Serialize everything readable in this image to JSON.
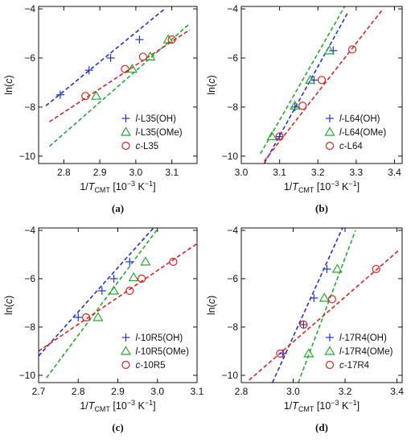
{
  "figure": {
    "panel_labels": [
      "(a)",
      "(b)",
      "(c)",
      "(d)"
    ]
  },
  "chart_data": [
    {
      "type": "scatter",
      "panel": "(a)",
      "xlabel": "1/T_CMT [10^-3 K^-1]",
      "ylabel": "ln(c)",
      "xlim": [
        2.73,
        3.17
      ],
      "ylim": [
        -10.3,
        -3.9
      ],
      "xticks": [
        2.8,
        2.9,
        3.0,
        3.1
      ],
      "yticks": [
        -10,
        -8,
        -6,
        -4
      ],
      "xtick_labels": [
        "2.8",
        "2.9",
        "3.0",
        "3.1"
      ],
      "ytick_labels": [
        "−10",
        "−8",
        "−6",
        "−4"
      ],
      "legend": "bottom-right",
      "grid": false,
      "series": [
        {
          "name": "l-L35(OH)",
          "prefix": "l",
          "suffix": "-L35(OH)",
          "marker": "plus",
          "color": "#2233cc",
          "points": [
            [
              2.79,
              -7.5
            ],
            [
              2.87,
              -6.5
            ],
            [
              2.93,
              -6.0
            ],
            [
              3.01,
              -5.25
            ]
          ],
          "fit": [
            [
              2.75,
              -7.95
            ],
            [
              3.08,
              -4.0
            ]
          ]
        },
        {
          "name": "l-L35(OMe)",
          "prefix": "l",
          "suffix": "-L35(OMe)",
          "marker": "triangle",
          "color": "#22aa33",
          "points": [
            [
              2.89,
              -7.55
            ],
            [
              2.99,
              -6.45
            ],
            [
              3.04,
              -5.95
            ],
            [
              3.09,
              -5.25
            ]
          ],
          "fit": [
            [
              2.76,
              -9.6
            ],
            [
              3.15,
              -4.6
            ]
          ]
        },
        {
          "name": "c-L35",
          "prefix": "c",
          "suffix": "-L35",
          "marker": "circle",
          "color": "#dd2222",
          "points": [
            [
              2.86,
              -7.55
            ],
            [
              2.97,
              -6.45
            ],
            [
              3.02,
              -5.95
            ],
            [
              3.1,
              -5.25
            ]
          ],
          "fit": [
            [
              2.76,
              -8.6
            ],
            [
              3.15,
              -4.85
            ]
          ]
        }
      ]
    },
    {
      "type": "scatter",
      "panel": "(b)",
      "xlabel": "1/T_CMT [10^-3 K^-1]",
      "ylabel": "ln(c)",
      "xlim": [
        3.0,
        3.42
      ],
      "ylim": [
        -10.3,
        -3.9
      ],
      "xticks": [
        3.0,
        3.1,
        3.2,
        3.3,
        3.4
      ],
      "yticks": [
        -10,
        -8,
        -6,
        -4
      ],
      "xtick_labels": [
        "3.0",
        "3.1",
        "3.2",
        "3.3",
        "3.4"
      ],
      "ytick_labels": [
        "−10",
        "−8",
        "−6",
        "−4"
      ],
      "legend": "bottom-right",
      "grid": false,
      "series": [
        {
          "name": "l-L64(OH)",
          "prefix": "l",
          "suffix": "-L64(OH)",
          "marker": "plus",
          "color": "#2233cc",
          "points": [
            [
              3.1,
              -9.2
            ],
            [
              3.14,
              -8.0
            ],
            [
              3.19,
              -6.9
            ],
            [
              3.24,
              -5.7
            ]
          ],
          "fit": [
            [
              3.06,
              -10.3
            ],
            [
              3.28,
              -4.1
            ]
          ]
        },
        {
          "name": "l-L64(OMe)",
          "prefix": "l",
          "suffix": "-L64(OMe)",
          "marker": "triangle",
          "color": "#22aa33",
          "points": [
            [
              3.08,
              -9.2
            ],
            [
              3.14,
              -7.95
            ],
            [
              3.18,
              -6.9
            ],
            [
              3.23,
              -5.7
            ]
          ],
          "fit": [
            [
              3.05,
              -9.9
            ],
            [
              3.27,
              -3.9
            ]
          ]
        },
        {
          "name": "c-L64",
          "prefix": "c",
          "suffix": "-L64",
          "marker": "circle",
          "color": "#dd2222",
          "points": [
            [
              3.1,
              -9.2
            ],
            [
              3.16,
              -7.95
            ],
            [
              3.21,
              -6.9
            ],
            [
              3.29,
              -5.65
            ]
          ],
          "fit": [
            [
              3.06,
              -10.2
            ],
            [
              3.37,
              -4.0
            ]
          ]
        }
      ]
    },
    {
      "type": "scatter",
      "panel": "(c)",
      "xlabel": "1/T_CMT [10^-3 K^-1]",
      "ylabel": "ln(c)",
      "xlim": [
        2.7,
        3.1
      ],
      "ylim": [
        -10.3,
        -3.9
      ],
      "xticks": [
        2.7,
        2.8,
        2.9,
        3.0,
        3.1
      ],
      "yticks": [
        -10,
        -8,
        -6,
        -4
      ],
      "xtick_labels": [
        "2.7",
        "2.8",
        "2.9",
        "3.0",
        "3.1"
      ],
      "ytick_labels": [
        "−10",
        "−8",
        "−6",
        "−4"
      ],
      "legend": "bottom-right",
      "grid": false,
      "series": [
        {
          "name": "l-10R5(OH)",
          "prefix": "l",
          "suffix": "-10R5(OH)",
          "marker": "plus",
          "color": "#2233cc",
          "points": [
            [
              2.8,
              -7.6
            ],
            [
              2.86,
              -6.5
            ],
            [
              2.89,
              -6.0
            ],
            [
              2.93,
              -5.3
            ]
          ],
          "fit": [
            [
              2.7,
              -9.2
            ],
            [
              2.99,
              -3.9
            ]
          ]
        },
        {
          "name": "l-10R5(OMe)",
          "prefix": "l",
          "suffix": "-10R5(OMe)",
          "marker": "triangle",
          "color": "#22aa33",
          "points": [
            [
              2.85,
              -7.6
            ],
            [
              2.89,
              -6.5
            ],
            [
              2.94,
              -5.95
            ],
            [
              2.97,
              -5.3
            ]
          ],
          "fit": [
            [
              2.72,
              -10.1
            ],
            [
              3.0,
              -3.95
            ]
          ]
        },
        {
          "name": "c-10R5",
          "prefix": "c",
          "suffix": "-10R5",
          "marker": "circle",
          "color": "#dd2222",
          "points": [
            [
              2.82,
              -7.6
            ],
            [
              2.93,
              -6.5
            ],
            [
              2.96,
              -6.0
            ],
            [
              3.04,
              -5.3
            ]
          ],
          "fit": [
            [
              2.7,
              -9.0
            ],
            [
              3.1,
              -4.55
            ]
          ]
        }
      ]
    },
    {
      "type": "scatter",
      "panel": "(d)",
      "xlabel": "1/T_CMT [10^-3 K^-1]",
      "ylabel": "ln(c)",
      "xlim": [
        2.8,
        3.42
      ],
      "ylim": [
        -10.3,
        -3.9
      ],
      "xticks": [
        2.8,
        3.0,
        3.2,
        3.4
      ],
      "yticks": [
        -10,
        -8,
        -6,
        -4
      ],
      "xtick_labels": [
        "2.8",
        "3.0",
        "3.2",
        "3.4"
      ],
      "ytick_labels": [
        "−10",
        "−8",
        "−6",
        "−4"
      ],
      "legend": "bottom-right",
      "grid": false,
      "series": [
        {
          "name": "l-17R4(OH)",
          "prefix": "l",
          "suffix": "-17R4(OH)",
          "marker": "plus",
          "color": "#2233cc",
          "points": [
            [
              2.96,
              -9.1
            ],
            [
              3.04,
              -7.9
            ],
            [
              3.08,
              -6.8
            ],
            [
              3.13,
              -5.6
            ]
          ],
          "fit": [
            [
              2.92,
              -10.3
            ],
            [
              3.19,
              -3.9
            ]
          ]
        },
        {
          "name": "l-17R4(OMe)",
          "prefix": "l",
          "suffix": "-17R4(OMe)",
          "marker": "triangle",
          "color": "#22aa33",
          "points": [
            [
              3.06,
              -9.1
            ],
            [
              3.12,
              -6.8
            ],
            [
              3.17,
              -5.6
            ]
          ],
          "fit": [
            [
              3.02,
              -10.3
            ],
            [
              3.24,
              -4.0
            ]
          ]
        },
        {
          "name": "c-17R4",
          "prefix": "c",
          "suffix": "-17R4",
          "marker": "circle",
          "color": "#dd2222",
          "points": [
            [
              2.95,
              -9.1
            ],
            [
              3.04,
              -7.9
            ],
            [
              3.15,
              -6.85
            ],
            [
              3.32,
              -5.6
            ]
          ],
          "fit": [
            [
              2.83,
              -10.2
            ],
            [
              3.41,
              -4.8
            ]
          ]
        }
      ]
    }
  ]
}
